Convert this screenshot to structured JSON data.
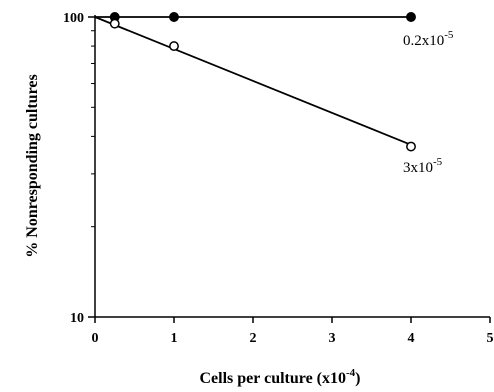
{
  "chart_data": {
    "type": "line",
    "y_scale": "log",
    "xlim": [
      0,
      5
    ],
    "ylim": [
      10,
      100
    ],
    "x_ticks": [
      "0",
      "1",
      "2",
      "3",
      "4",
      "5"
    ],
    "y_ticks": [
      "10",
      "100"
    ],
    "xlabel": "Cells per culture (x10",
    "xlabel_exp": "-4",
    "xlabel_end": ")",
    "ylabel": "% Nonresponding cultures",
    "grid": false,
    "series": [
      {
        "label_base": "0.2x10",
        "label_exp": "-5",
        "marker": "filled-circle",
        "points": [
          [
            0.25,
            100
          ],
          [
            1,
            100
          ],
          [
            4,
            100
          ]
        ],
        "fit": [
          [
            0,
            100
          ],
          [
            4,
            100
          ]
        ]
      },
      {
        "label_base": "3x10",
        "label_exp": "-5",
        "marker": "open-circle",
        "points": [
          [
            0.25,
            95
          ],
          [
            1,
            80
          ],
          [
            4,
            37
          ]
        ],
        "fit": [
          [
            0,
            100
          ],
          [
            4,
            37.5
          ]
        ]
      }
    ]
  }
}
